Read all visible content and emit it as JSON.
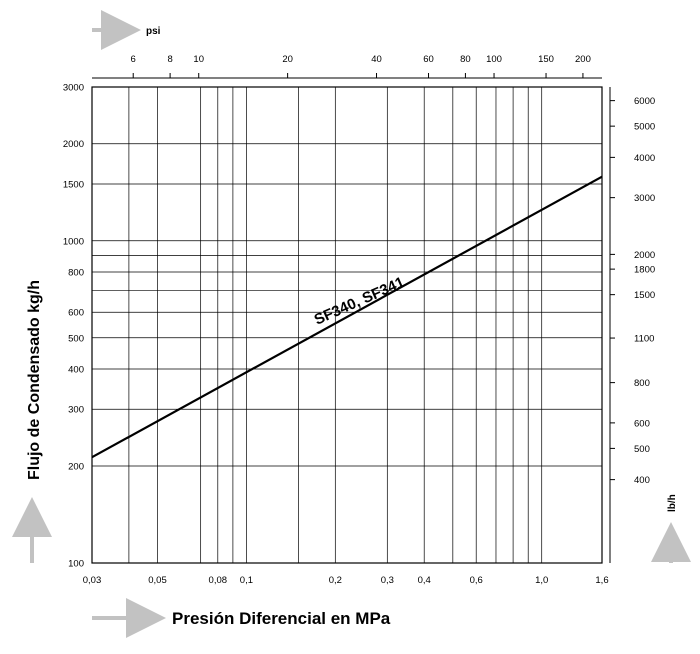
{
  "chart_data": {
    "type": "line",
    "title": "",
    "xlabel": "Presión Diferencial en MPa",
    "ylabel": "Flujo de Condensado kg/h",
    "x_scale": "log",
    "y_scale": "log",
    "xlim": [
      0.03,
      1.6
    ],
    "ylim": [
      100,
      3000
    ],
    "grid": true,
    "x_ticks": [
      {
        "value": 0.03,
        "label": "0,03"
      },
      {
        "value": 0.05,
        "label": "0,05"
      },
      {
        "value": 0.08,
        "label": "0,08"
      },
      {
        "value": 0.1,
        "label": "0,1"
      },
      {
        "value": 0.2,
        "label": "0,2"
      },
      {
        "value": 0.3,
        "label": "0,3"
      },
      {
        "value": 0.4,
        "label": "0,4"
      },
      {
        "value": 0.6,
        "label": "0,6"
      },
      {
        "value": 1.0,
        "label": "1,0"
      },
      {
        "value": 1.6,
        "label": "1,6"
      }
    ],
    "x_minor_grid": [
      0.04,
      0.07,
      0.09,
      0.15,
      0.5,
      0.7,
      0.8,
      0.9
    ],
    "y_ticks": [
      {
        "value": 100,
        "label": "100"
      },
      {
        "value": 200,
        "label": "200"
      },
      {
        "value": 300,
        "label": "300"
      },
      {
        "value": 400,
        "label": "400"
      },
      {
        "value": 500,
        "label": "500"
      },
      {
        "value": 600,
        "label": "600"
      },
      {
        "value": 800,
        "label": "800"
      },
      {
        "value": 1000,
        "label": "1000"
      },
      {
        "value": 1500,
        "label": "1500"
      },
      {
        "value": 2000,
        "label": "2000"
      },
      {
        "value": 3000,
        "label": "3000"
      }
    ],
    "y_minor_grid": [
      900,
      700
    ],
    "top_axis": {
      "unit": "psi",
      "ticks": [
        {
          "value": 6,
          "label": "6"
        },
        {
          "value": 8,
          "label": "8"
        },
        {
          "value": 10,
          "label": "10"
        },
        {
          "value": 20,
          "label": "20"
        },
        {
          "value": 40,
          "label": "40"
        },
        {
          "value": 60,
          "label": "60"
        },
        {
          "value": 80,
          "label": "80"
        },
        {
          "value": 100,
          "label": "100"
        },
        {
          "value": 150,
          "label": "150"
        },
        {
          "value": 200,
          "label": "200"
        }
      ]
    },
    "right_axis": {
      "unit": "lb/h",
      "ticks": [
        {
          "value": 400,
          "label": "400"
        },
        {
          "value": 500,
          "label": "500"
        },
        {
          "value": 600,
          "label": "600"
        },
        {
          "value": 800,
          "label": "800"
        },
        {
          "value": 1100,
          "label": "1100"
        },
        {
          "value": 1500,
          "label": "1500"
        },
        {
          "value": 1800,
          "label": "1800"
        },
        {
          "value": 2000,
          "label": "2000"
        },
        {
          "value": 3000,
          "label": "3000"
        },
        {
          "value": 4000,
          "label": "4000"
        },
        {
          "value": 5000,
          "label": "5000"
        },
        {
          "value": 6000,
          "label": "6000"
        }
      ]
    },
    "series": [
      {
        "name": "SF340, SF341",
        "x": [
          0.03,
          1.6
        ],
        "y": [
          213,
          1580
        ]
      }
    ]
  }
}
